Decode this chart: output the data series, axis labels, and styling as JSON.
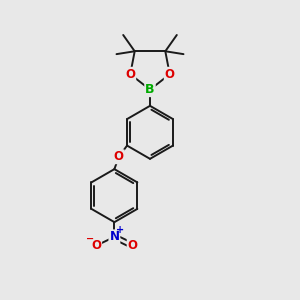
{
  "bg_color": "#e8e8e8",
  "bond_color": "#1a1a1a",
  "bond_width": 1.4,
  "B_color": "#00aa00",
  "O_color": "#dd0000",
  "N_color": "#0000cc",
  "fig_size": [
    3.0,
    3.0
  ],
  "dpi": 100,
  "xlim": [
    0,
    10
  ],
  "ylim": [
    0,
    10
  ]
}
